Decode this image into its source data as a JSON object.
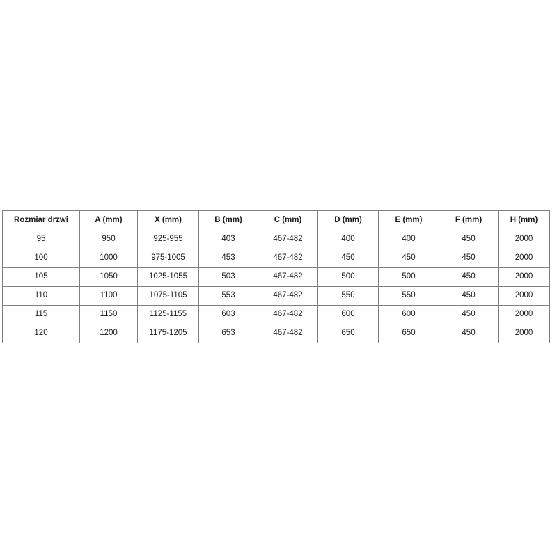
{
  "table": {
    "columns": [
      "Rozmiar drzwi",
      "A (mm)",
      "X (mm)",
      "B (mm)",
      "C (mm)",
      "D (mm)",
      "E (mm)",
      "F (mm)",
      "H (mm)"
    ],
    "rows": [
      [
        "95",
        "950",
        "925-955",
        "403",
        "467-482",
        "400",
        "400",
        "450",
        "2000"
      ],
      [
        "100",
        "1000",
        "975-1005",
        "453",
        "467-482",
        "450",
        "450",
        "450",
        "2000"
      ],
      [
        "105",
        "1050",
        "1025-1055",
        "503",
        "467-482",
        "500",
        "500",
        "450",
        "2000"
      ],
      [
        "110",
        "1100",
        "1075-1105",
        "553",
        "467-482",
        "550",
        "550",
        "450",
        "2000"
      ],
      [
        "115",
        "1150",
        "1125-1155",
        "603",
        "467-482",
        "600",
        "600",
        "450",
        "2000"
      ],
      [
        "120",
        "1200",
        "1175-1205",
        "653",
        "467-482",
        "650",
        "650",
        "450",
        "2000"
      ]
    ],
    "colors": {
      "border": "#808080",
      "text": "#1a1a1a",
      "background": "#ffffff"
    }
  }
}
